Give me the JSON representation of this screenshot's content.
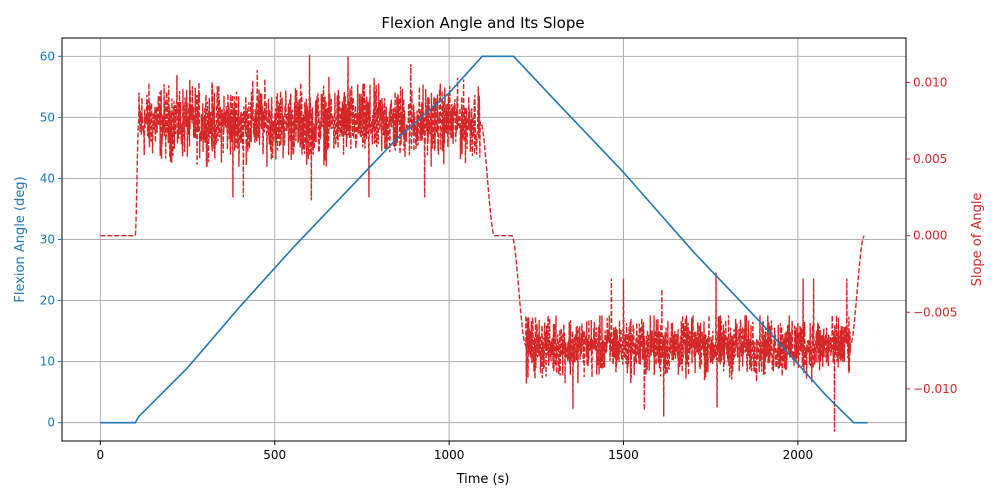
{
  "chart_data": {
    "type": "line",
    "title": "Flexion Angle and Its Slope",
    "xlabel": "Time (s)",
    "ylabel_left": "Flexion Angle (deg)",
    "ylabel_right": "Slope of Angle",
    "xlim": [
      -110,
      2310
    ],
    "ylim_left": [
      -3,
      63
    ],
    "ylim_right": [
      -0.0134,
      0.0129
    ],
    "x_ticks": [
      0,
      500,
      1000,
      1500,
      2000
    ],
    "y_ticks_left": [
      0,
      10,
      20,
      30,
      40,
      50,
      60
    ],
    "y_ticks_right": [
      -0.01,
      -0.005,
      0.0,
      0.005,
      0.01
    ],
    "x_tick_labels": [
      "0",
      "500",
      "1000",
      "1500",
      "2000"
    ],
    "y_tick_labels_left": [
      "0",
      "10",
      "20",
      "30",
      "40",
      "50",
      "60"
    ],
    "y_tick_labels_right": [
      "−0.010",
      "−0.005",
      "0.000",
      "0.005",
      "0.010"
    ],
    "grid": true,
    "colors": {
      "angle": "#1f77b4",
      "slope": "#d62728",
      "grid": "#b0b0b0"
    },
    "series": [
      {
        "axis": "left",
        "style": "solid",
        "x": [
          0,
          100,
          110,
          250,
          400,
          550,
          700,
          850,
          1000,
          1095,
          1185,
          1300,
          1500,
          1700,
          1900,
          2080,
          2160,
          2200
        ],
        "y": [
          0,
          0,
          1,
          9,
          19,
          28.5,
          37.5,
          46.5,
          54,
          60,
          60,
          53,
          41,
          28,
          16,
          4.5,
          0,
          0
        ]
      },
      {
        "axis": "right",
        "style": "dashed",
        "segments": [
          {
            "x_start": 0,
            "x_end": 100,
            "kind": "constant",
            "value": 0.0
          },
          {
            "x_start": 100,
            "x_end": 110,
            "kind": "ramp",
            "from": 0.0,
            "to": 0.0075
          },
          {
            "x_start": 110,
            "x_end": 1090,
            "kind": "noisy",
            "mean": 0.0074,
            "low": 0.0045,
            "high": 0.0105
          },
          {
            "x_start": 1090,
            "x_end": 1130,
            "kind": "ramp",
            "from": 0.0074,
            "to": 0.0
          },
          {
            "x_start": 1130,
            "x_end": 1180,
            "kind": "constant",
            "value": 0.0
          },
          {
            "x_start": 1180,
            "x_end": 1220,
            "kind": "ramp",
            "from": 0.0,
            "to": -0.0072
          },
          {
            "x_start": 1220,
            "x_end": 2150,
            "kind": "noisy",
            "mean": -0.0072,
            "low": -0.0102,
            "high": -0.0052
          },
          {
            "x_start": 2150,
            "x_end": 2190,
            "kind": "ramp",
            "from": -0.0072,
            "to": 0.0
          }
        ],
        "spikes": [
          [
            380,
            0.0025
          ],
          [
            410,
            0.0025
          ],
          [
            450,
            0.0108
          ],
          [
            600,
            0.0118
          ],
          [
            605,
            0.0023
          ],
          [
            710,
            0.0117
          ],
          [
            770,
            0.0025
          ],
          [
            930,
            0.0025
          ],
          [
            890,
            0.0112
          ],
          [
            1355,
            -0.0113
          ],
          [
            1465,
            -0.0028
          ],
          [
            1500,
            -0.0028
          ],
          [
            1560,
            -0.0114
          ],
          [
            1610,
            -0.0035
          ],
          [
            1615,
            -0.0118
          ],
          [
            1765,
            -0.0024
          ],
          [
            1768,
            -0.0112
          ],
          [
            2015,
            -0.0028
          ],
          [
            2045,
            -0.0028
          ],
          [
            2105,
            -0.0128
          ],
          [
            2140,
            -0.0028
          ]
        ]
      }
    ]
  }
}
